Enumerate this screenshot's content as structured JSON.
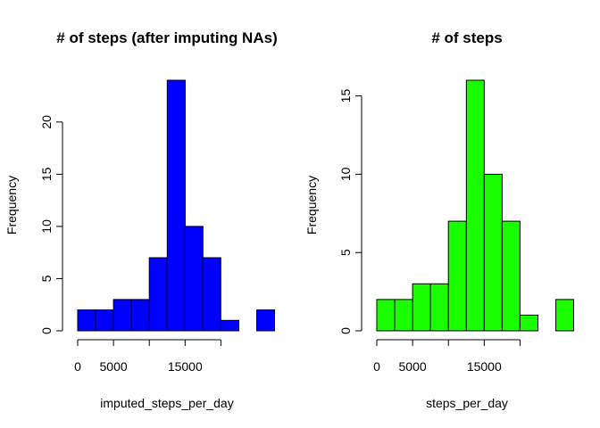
{
  "chart_data": [
    {
      "type": "bar",
      "title": "# of steps (after imputing NAs)",
      "xlabel": "imputed_steps_per_day",
      "ylabel": "Frequency",
      "bar_color": "#0000ff",
      "bin_width": 2500,
      "bin_start": 0,
      "values": [
        2,
        2,
        3,
        3,
        7,
        24,
        10,
        7,
        1,
        0,
        2
      ],
      "xlim": [
        0,
        27500
      ],
      "ylim": [
        0,
        24
      ],
      "x_ticks": [
        0,
        5000,
        10000,
        15000,
        20000
      ],
      "x_tick_labels": [
        "0",
        "5000",
        "",
        "15000",
        ""
      ],
      "y_ticks": [
        0,
        5,
        10,
        15,
        20
      ],
      "y_tick_labels": [
        "0",
        "5",
        "10",
        "15",
        "20"
      ]
    },
    {
      "type": "bar",
      "title": "# of steps",
      "xlabel": "steps_per_day",
      "ylabel": "Frequency",
      "bar_color": "#1aff00",
      "bin_width": 2500,
      "bin_start": 0,
      "values": [
        2,
        2,
        3,
        3,
        7,
        16,
        10,
        7,
        1,
        0,
        2
      ],
      "xlim": [
        0,
        27500
      ],
      "ylim": [
        0,
        16
      ],
      "x_ticks": [
        0,
        5000,
        10000,
        15000,
        20000
      ],
      "x_tick_labels": [
        "0",
        "5000",
        "",
        "15000",
        ""
      ],
      "y_ticks": [
        0,
        5,
        10,
        15
      ],
      "y_tick_labels": [
        "0",
        "5",
        "10",
        "15"
      ]
    }
  ]
}
